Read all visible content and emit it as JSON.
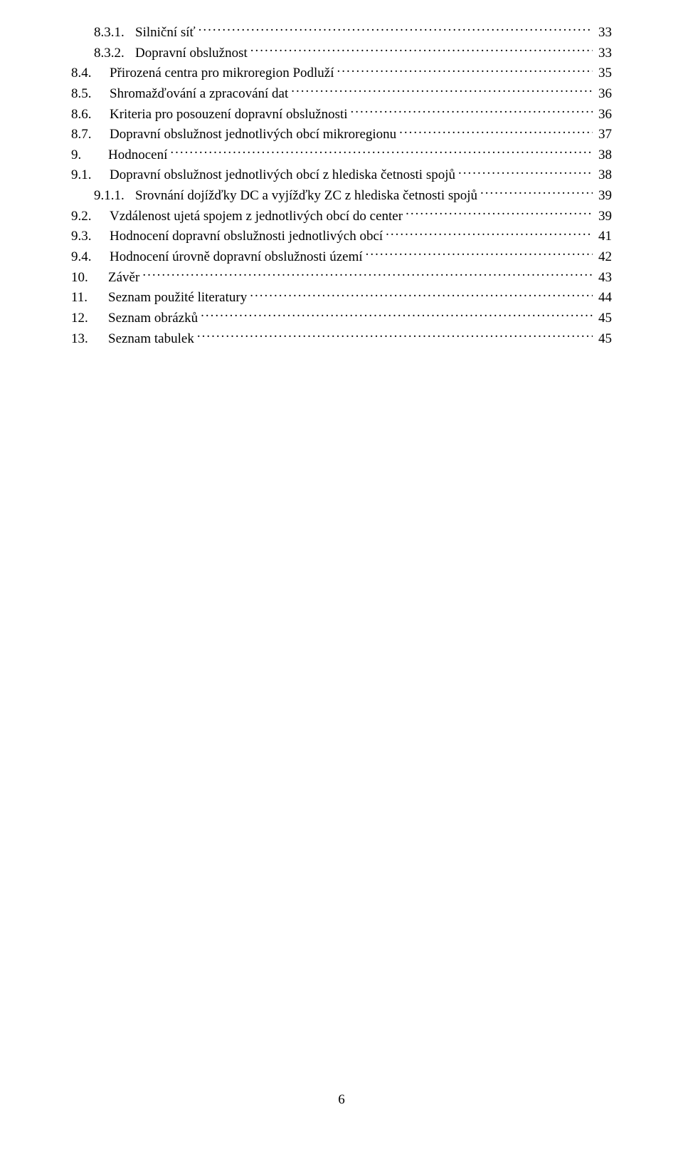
{
  "colors": {
    "background": "#ffffff",
    "text": "#000000"
  },
  "typography": {
    "family": "Times New Roman",
    "size_pt": 12
  },
  "pageNumber": "6",
  "toc": [
    {
      "indent": 1,
      "num": "8.3.1.",
      "title": "Silniční síť",
      "page": "33"
    },
    {
      "indent": 1,
      "num": "8.3.2.",
      "title": "Dopravní obslužnost",
      "page": "33"
    },
    {
      "indent": 0,
      "num": "8.4.",
      "title": "Přirozená centra pro mikroregion Podluží",
      "page": "35",
      "gap": 14
    },
    {
      "indent": 0,
      "num": "8.5.",
      "title": "Shromažďování a zpracování dat",
      "page": "36",
      "gap": 14
    },
    {
      "indent": 0,
      "num": "8.6.",
      "title": "Kriteria pro posouzení dopravní obslužnosti",
      "page": "36",
      "gap": 14
    },
    {
      "indent": 0,
      "num": "8.7.",
      "title": "Dopravní obslužnost jednotlivých obcí mikroregionu",
      "page": "37",
      "gap": 14
    },
    {
      "indent": 0,
      "num": "9.",
      "title": "Hodnocení",
      "page": "38",
      "gap": 12
    },
    {
      "indent": 0,
      "num": "9.1.",
      "title": "Dopravní obslužnost jednotlivých obcí z hlediska četnosti spojů",
      "page": "38",
      "gap": 14
    },
    {
      "indent": 1,
      "num": "9.1.1.",
      "title": "Srovnání dojížďky DC a vyjížďky ZC z hlediska četnosti spojů",
      "page": "39"
    },
    {
      "indent": 0,
      "num": "9.2.",
      "title": "Vzdálenost ujetá spojem z jednotlivých obcí do center",
      "page": "39",
      "gap": 14
    },
    {
      "indent": 0,
      "num": "9.3.",
      "title": "Hodnocení dopravní obslužnosti jednotlivých obcí",
      "page": "41",
      "gap": 14
    },
    {
      "indent": 0,
      "num": "9.4.",
      "title": "Hodnocení úrovně dopravní obslužnosti území",
      "page": "42",
      "gap": 14
    },
    {
      "indent": 0,
      "num": "10.",
      "title": "Závěr",
      "page": "43",
      "gap": 12
    },
    {
      "indent": 0,
      "num": "11.",
      "title": "Seznam použité literatury",
      "page": "44",
      "gap": 12
    },
    {
      "indent": 0,
      "num": "12.",
      "title": "Seznam obrázků",
      "page": "45",
      "gap": 12
    },
    {
      "indent": 0,
      "num": "13.",
      "title": "Seznam tabulek",
      "page": "45",
      "gap": 12
    }
  ]
}
